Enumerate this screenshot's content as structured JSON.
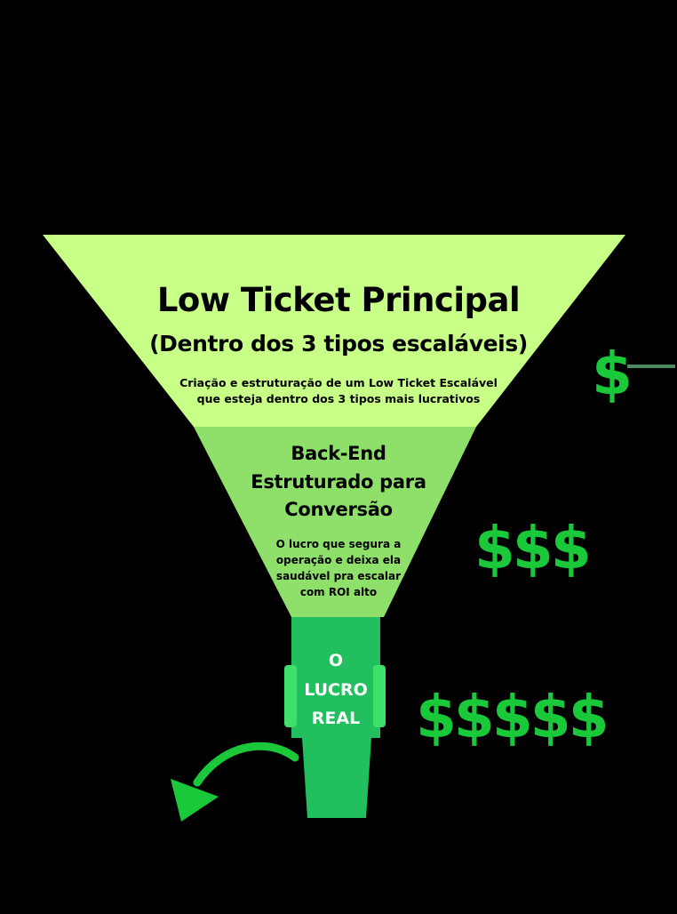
{
  "funnel": {
    "tier1": {
      "title": "Low Ticket Principal",
      "subtitle": "(Dentro dos 3 tipos escaláveis)",
      "description_line1": "Criação e estruturação de um Low Ticket Escalável",
      "description_line2": "que esteja dentro dos 3 tipos mais lucrativos",
      "color": "#c8ff86"
    },
    "tier2": {
      "title_line1": "Back-End",
      "title_line2": "Estruturado para",
      "title_line3": "Conversão",
      "description_line1": "O lucro que segura a",
      "description_line2": "operação e deixa ela",
      "description_line3": "saudável pra escalar",
      "description_line4": "com ROI alto",
      "color": "#8ee06a"
    },
    "tier3": {
      "label_line1": "O",
      "label_line2": "LUCRO",
      "label_line3": "REAL",
      "color": "#1fc25a"
    }
  },
  "indicators": {
    "tier1": "$",
    "tier2": "$$$",
    "tier3": "$$$$$",
    "color": "#19c93a"
  },
  "icons": {
    "arrow": "curved-arrow-icon",
    "connector": "connector-line"
  }
}
